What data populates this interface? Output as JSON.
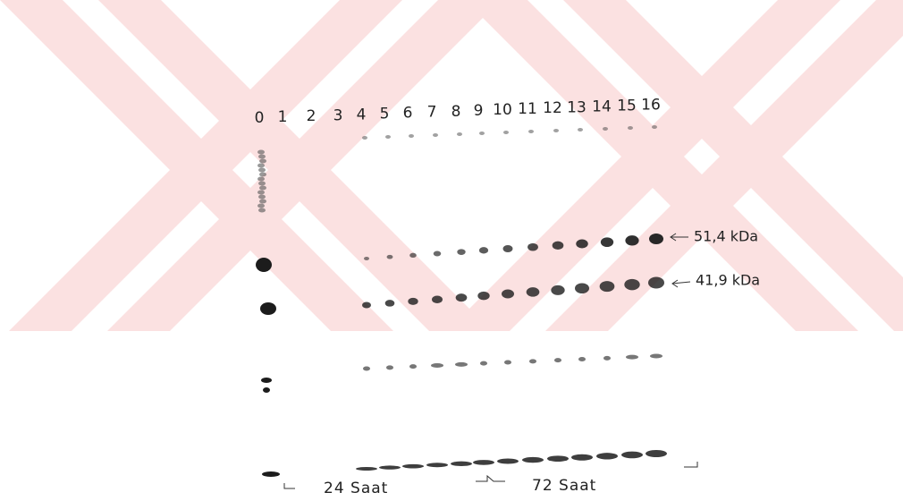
{
  "gel": {
    "lanes": [
      "0",
      "1",
      "2",
      "3",
      "4",
      "5",
      "6",
      "7",
      "8",
      "9",
      "10",
      "11",
      "12",
      "13",
      "14",
      "15",
      "16"
    ],
    "markers": [
      "51,4 kDa",
      "41,9 kDa"
    ],
    "groups": [
      "24 Saat",
      "72 Saat"
    ]
  }
}
